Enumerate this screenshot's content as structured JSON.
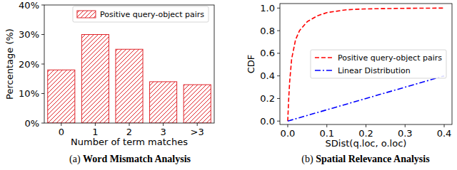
{
  "chart_data": [
    {
      "type": "bar",
      "panel": "(a)",
      "title": "Word Mismatch Analysis",
      "x_label": "Number of term matches",
      "y_label": "Percentage (%)",
      "categories": [
        "0",
        "1",
        "2",
        "3",
        ">3"
      ],
      "series": [
        {
          "name": "Positive query-object pairs",
          "color": "#e0242a",
          "values": [
            18,
            30,
            25,
            14,
            13
          ]
        }
      ],
      "ylim": [
        0,
        40
      ],
      "yticks": [
        {
          "value": 0,
          "label": "0%"
        },
        {
          "value": 10,
          "label": "10%"
        },
        {
          "value": 20,
          "label": "20%"
        },
        {
          "value": 30,
          "label": "30%"
        },
        {
          "value": 40,
          "label": "40%"
        }
      ],
      "legend": "upper right",
      "grid": false
    },
    {
      "type": "line",
      "panel": "(b)",
      "title": "Spatial Relevance Analysis",
      "x_label": "SDist(q.loc, o.loc)",
      "y_label": "CDF",
      "x": [
        0,
        0.0025,
        0.005,
        0.01,
        0.02,
        0.03,
        0.05,
        0.075,
        0.1,
        0.15,
        0.2,
        0.3,
        0.4
      ],
      "series": [
        {
          "name": "Positive query-object pairs",
          "color": "#ff0000",
          "line_style": "dashed",
          "values": [
            0,
            0.2,
            0.35,
            0.55,
            0.72,
            0.8,
            0.88,
            0.93,
            0.96,
            0.985,
            0.993,
            0.998,
            1.0
          ]
        },
        {
          "name": "Linear Distribution",
          "color": "#0000ff",
          "line_style": "dashdot",
          "values": [
            0,
            0.0025,
            0.005,
            0.01,
            0.02,
            0.03,
            0.05,
            0.075,
            0.1,
            0.15,
            0.2,
            0.3,
            0.4
          ]
        }
      ],
      "xlim": [
        -0.02,
        0.42
      ],
      "ylim": [
        -0.03,
        1.04
      ],
      "xticks": [
        {
          "value": 0,
          "label": "0.0"
        },
        {
          "value": 0.1,
          "label": "0.1"
        },
        {
          "value": 0.2,
          "label": "0.2"
        },
        {
          "value": 0.3,
          "label": "0.3"
        },
        {
          "value": 0.4,
          "label": "0.4"
        }
      ],
      "yticks": [
        {
          "value": 0,
          "label": "0.0"
        },
        {
          "value": 0.2,
          "label": "0.2"
        },
        {
          "value": 0.4,
          "label": "0.4"
        },
        {
          "value": 0.6,
          "label": "0.6"
        },
        {
          "value": 0.8,
          "label": "0.8"
        },
        {
          "value": 1.0,
          "label": "1.0"
        }
      ],
      "legend": "center right",
      "grid": false
    }
  ]
}
